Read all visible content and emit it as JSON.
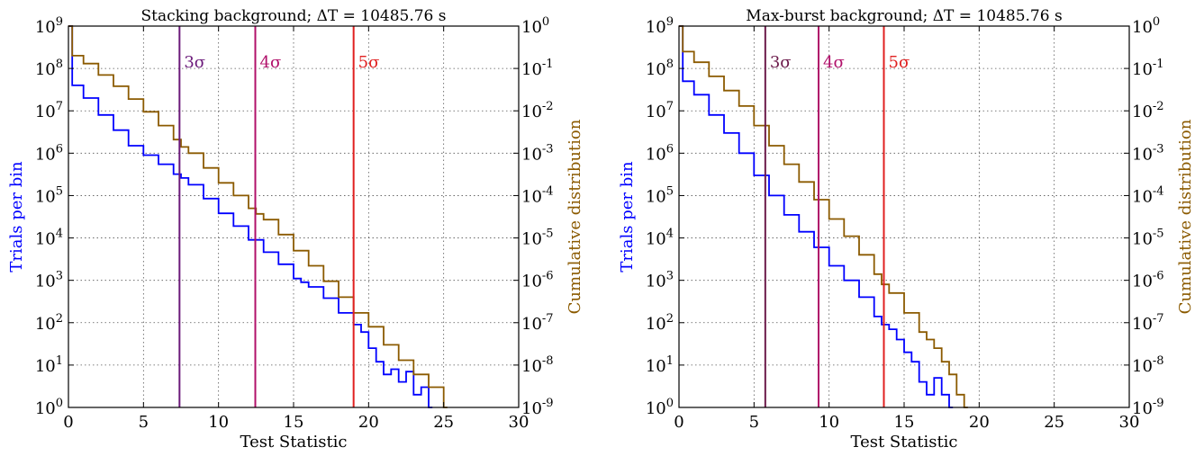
{
  "chart_data": [
    {
      "type": "line",
      "subtype": "step-histogram",
      "title": "Stacking background; ΔT = 10485.76 s",
      "xlabel": "Test Statistic",
      "ylabel": "Trials per bin",
      "ylabel_right": "Cumulative distribution",
      "xlim": [
        0,
        30
      ],
      "xticks": [
        "0",
        "5",
        "10",
        "15",
        "20",
        "25",
        "30"
      ],
      "ylim": [
        1,
        1000000000
      ],
      "yscale": "log",
      "yticks": [
        "10^0",
        "10^1",
        "10^2",
        "10^3",
        "10^4",
        "10^5",
        "10^6",
        "10^7",
        "10^8",
        "10^9"
      ],
      "ylim_right": [
        1e-09,
        1
      ],
      "yticks_right": [
        "10^-9",
        "10^-8",
        "10^-7",
        "10^-6",
        "10^-5",
        "10^-4",
        "10^-3",
        "10^-2",
        "10^-1",
        "10^0"
      ],
      "grid": true,
      "series": [
        {
          "color": "#0000ff",
          "axis": "left",
          "x": [
            0,
            0.25,
            1,
            2,
            3,
            4,
            5,
            6,
            7,
            7.5,
            8,
            9,
            10,
            11,
            12,
            13,
            14,
            15,
            15.5,
            16,
            17,
            18,
            19,
            19.5,
            20,
            20.5,
            21,
            21.5,
            22,
            22.5,
            23,
            23.5,
            24
          ],
          "y": [
            1000000000,
            40000000,
            20000000,
            8000000,
            3500000,
            1500000,
            900000,
            550000,
            320000,
            260000,
            180000,
            85000,
            38000,
            19000,
            9000,
            4600,
            2400,
            1100,
            900,
            700,
            380,
            170,
            90,
            60,
            25,
            12,
            6,
            8,
            4,
            7,
            2,
            3,
            1
          ]
        },
        {
          "color": "#8b5a00",
          "axis": "right",
          "x": [
            0,
            0.25,
            1,
            2,
            3,
            4,
            5,
            6,
            7,
            7.5,
            8,
            9,
            10,
            11,
            12,
            12.5,
            13,
            14,
            15,
            16,
            17,
            18,
            19,
            20,
            21,
            22,
            23,
            24,
            25
          ],
          "y": [
            1,
            0.2,
            0.13,
            0.07,
            0.038,
            0.019,
            0.0095,
            0.0045,
            0.0021,
            0.0014,
            0.001,
            0.00045,
            0.0002,
            0.0001,
            5e-05,
            3.7e-05,
            2.7e-05,
            1.2e-05,
            5e-06,
            2.2e-06,
            9.5e-07,
            4e-07,
            1.7e-07,
            8e-08,
            3e-08,
            1.3e-08,
            6e-09,
            3e-09,
            1e-09
          ]
        }
      ],
      "vlines": [
        {
          "label": "3σ",
          "x": 7.4,
          "color": "#6b1a7a"
        },
        {
          "label": "4σ",
          "x": 12.45,
          "color": "#b0106a"
        },
        {
          "label": "5σ",
          "x": 19.0,
          "color": "#e02020"
        }
      ]
    },
    {
      "type": "line",
      "subtype": "step-histogram",
      "title": "Max-burst background; ΔT = 10485.76 s",
      "xlabel": "Test Statistic",
      "ylabel": "Trials per bin",
      "ylabel_right": "Cumulative distribution",
      "xlim": [
        0,
        30
      ],
      "xticks": [
        "0",
        "5",
        "10",
        "15",
        "20",
        "25",
        "30"
      ],
      "ylim": [
        1,
        1000000000
      ],
      "yscale": "log",
      "yticks": [
        "10^0",
        "10^1",
        "10^2",
        "10^3",
        "10^4",
        "10^5",
        "10^6",
        "10^7",
        "10^8",
        "10^9"
      ],
      "ylim_right": [
        1e-09,
        1
      ],
      "yticks_right": [
        "10^-9",
        "10^-8",
        "10^-7",
        "10^-6",
        "10^-5",
        "10^-4",
        "10^-3",
        "10^-2",
        "10^-1",
        "10^0"
      ],
      "grid": true,
      "series": [
        {
          "color": "#0000ff",
          "axis": "left",
          "x": [
            0,
            0.25,
            1,
            2,
            3,
            4,
            5,
            6,
            7,
            8,
            9,
            10,
            11,
            12,
            13,
            13.5,
            14,
            14.5,
            15,
            15.5,
            16,
            16.5,
            17,
            17.5,
            18
          ],
          "y": [
            1000000000,
            50000000,
            24000000,
            8000000,
            3000000,
            1000000,
            300000,
            100000,
            35000,
            14000,
            6000,
            2200,
            1000,
            400,
            140,
            90,
            70,
            40,
            20,
            12,
            4,
            2,
            5,
            2,
            1
          ]
        },
        {
          "color": "#8b5a00",
          "axis": "right",
          "x": [
            0,
            0.25,
            1,
            2,
            3,
            4,
            5,
            6,
            7,
            8,
            9,
            10,
            11,
            12,
            13,
            13.5,
            14,
            15,
            16,
            16.5,
            17,
            17.5,
            18,
            18.5,
            19
          ],
          "y": [
            1,
            0.25,
            0.14,
            0.065,
            0.03,
            0.013,
            0.0045,
            0.0015,
            0.00055,
            0.00021,
            8e-05,
            2.8e-05,
            1.1e-05,
            4e-06,
            1.4e-06,
            8e-07,
            5e-07,
            1.7e-07,
            6e-08,
            4e-08,
            2.5e-08,
            1.2e-08,
            6e-09,
            2e-09,
            1e-09
          ]
        }
      ],
      "vlines": [
        {
          "label": "3σ",
          "x": 5.75,
          "color": "#6b1a4a"
        },
        {
          "label": "4σ",
          "x": 9.3,
          "color": "#b0106a"
        },
        {
          "label": "5σ",
          "x": 13.65,
          "color": "#e02020"
        }
      ]
    }
  ]
}
